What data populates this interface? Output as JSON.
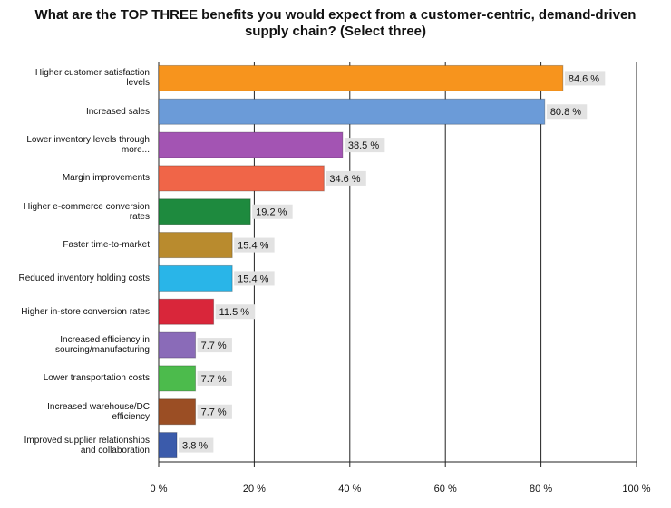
{
  "chart_data": {
    "type": "bar",
    "orientation": "horizontal",
    "title": "What are the TOP THREE benefits you would expect from a customer-centric, demand-driven supply chain? (Select three)",
    "categories": [
      "Higher customer satisfaction levels",
      "Increased sales",
      "Lower inventory levels through more...",
      "Margin improvements",
      "Higher e-commerce conversion rates",
      "Faster time-to-market",
      "Reduced inventory holding costs",
      "Higher in-store conversion rates",
      "Increased efficiency in sourcing/manufacturing",
      "Lower transportation costs",
      "Increased warehouse/DC efficiency",
      "Improved supplier relationships and collaboration"
    ],
    "values": [
      84.6,
      80.8,
      38.5,
      34.6,
      19.2,
      15.4,
      15.4,
      11.5,
      7.7,
      7.7,
      7.7,
      3.8
    ],
    "value_labels": [
      "84.6 %",
      "80.8 %",
      "38.5 %",
      "34.6 %",
      "19.2 %",
      "15.4 %",
      "15.4 %",
      "11.5 %",
      "7.7 %",
      "7.7 %",
      "7.7 %",
      "3.8 %"
    ],
    "colors": [
      "#f7941d",
      "#6b9bd8",
      "#a354b3",
      "#f06548",
      "#1e8a3e",
      "#b98b2e",
      "#29b5e8",
      "#d9263a",
      "#8a6bb8",
      "#4cbb4c",
      "#9b4e24",
      "#3b5bab"
    ],
    "xlim": [
      0,
      100
    ],
    "xticks": [
      {
        "value": 0,
        "label": "0 %"
      },
      {
        "value": 20,
        "label": "20 %"
      },
      {
        "value": 40,
        "label": "40 %"
      },
      {
        "value": 60,
        "label": "60 %"
      },
      {
        "value": 80,
        "label": "80 %"
      },
      {
        "value": 100,
        "label": "100 %"
      }
    ],
    "grid": true
  }
}
